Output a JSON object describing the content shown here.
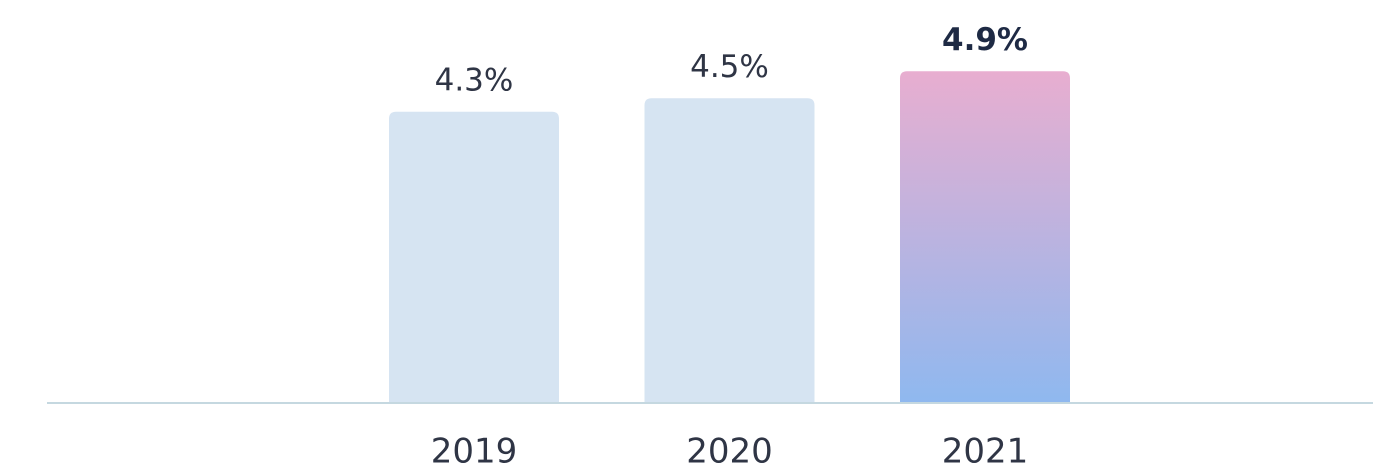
{
  "chart_data": {
    "type": "bar",
    "categories": [
      "2019",
      "2020",
      "2021"
    ],
    "values": [
      4.3,
      4.5,
      4.9
    ],
    "value_labels": [
      "4.3%",
      "4.5%",
      "4.9%"
    ],
    "colors": [
      "#d6e4f2",
      "#d6e4f2",
      {
        "from": "#e8aed0",
        "to": "#8fb8ef"
      }
    ],
    "highlight": 2,
    "axis_color": "#c5d8e0"
  }
}
